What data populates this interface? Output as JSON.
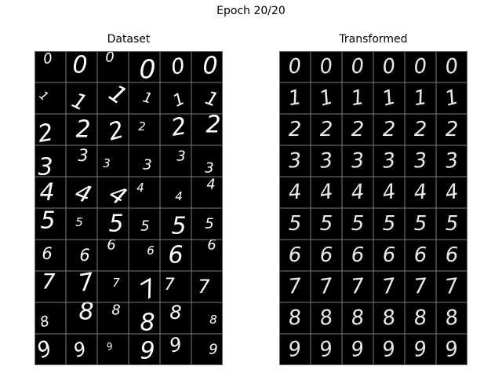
{
  "figure": {
    "title": "Epoch 20/20"
  },
  "panels": [
    {
      "id": "dataset",
      "title": "Dataset",
      "rows": [
        [
          "0",
          "0",
          "0",
          "0",
          "0",
          "0"
        ],
        [
          "1",
          "1",
          "1",
          "1",
          "1",
          "1"
        ],
        [
          "2",
          "2",
          "2",
          "2",
          "2",
          "2"
        ],
        [
          "3",
          "3",
          "3",
          "3",
          "3",
          "3"
        ],
        [
          "4",
          "4",
          "4",
          "4",
          "4",
          "4"
        ],
        [
          "5",
          "5",
          "5",
          "5",
          "5",
          "5"
        ],
        [
          "6",
          "6",
          "6",
          "6",
          "6",
          "6"
        ],
        [
          "7",
          "7",
          "7",
          "7",
          "7",
          "7"
        ],
        [
          "8",
          "8",
          "8",
          "8",
          "8",
          "8"
        ],
        [
          "9",
          "9",
          "9",
          "9",
          "9",
          "9"
        ]
      ]
    },
    {
      "id": "transformed",
      "title": "Transformed",
      "rows": [
        [
          "0",
          "0",
          "0",
          "0",
          "0",
          "0"
        ],
        [
          "1",
          "1",
          "1",
          "1",
          "1",
          "1"
        ],
        [
          "2",
          "2",
          "2",
          "2",
          "2",
          "2"
        ],
        [
          "3",
          "3",
          "3",
          "3",
          "3",
          "3"
        ],
        [
          "4",
          "4",
          "4",
          "4",
          "4",
          "4"
        ],
        [
          "5",
          "5",
          "5",
          "5",
          "5",
          "5"
        ],
        [
          "6",
          "6",
          "6",
          "6",
          "6",
          "6"
        ],
        [
          "7",
          "7",
          "7",
          "7",
          "7",
          "7"
        ],
        [
          "8",
          "8",
          "8",
          "8",
          "8",
          "8"
        ],
        [
          "9",
          "9",
          "9",
          "9",
          "9",
          "9"
        ]
      ]
    }
  ],
  "colors": {
    "background": "#ffffff",
    "cell_background": "#000000",
    "grid_line": "#7a7a7a",
    "digit": "#ffffff"
  }
}
